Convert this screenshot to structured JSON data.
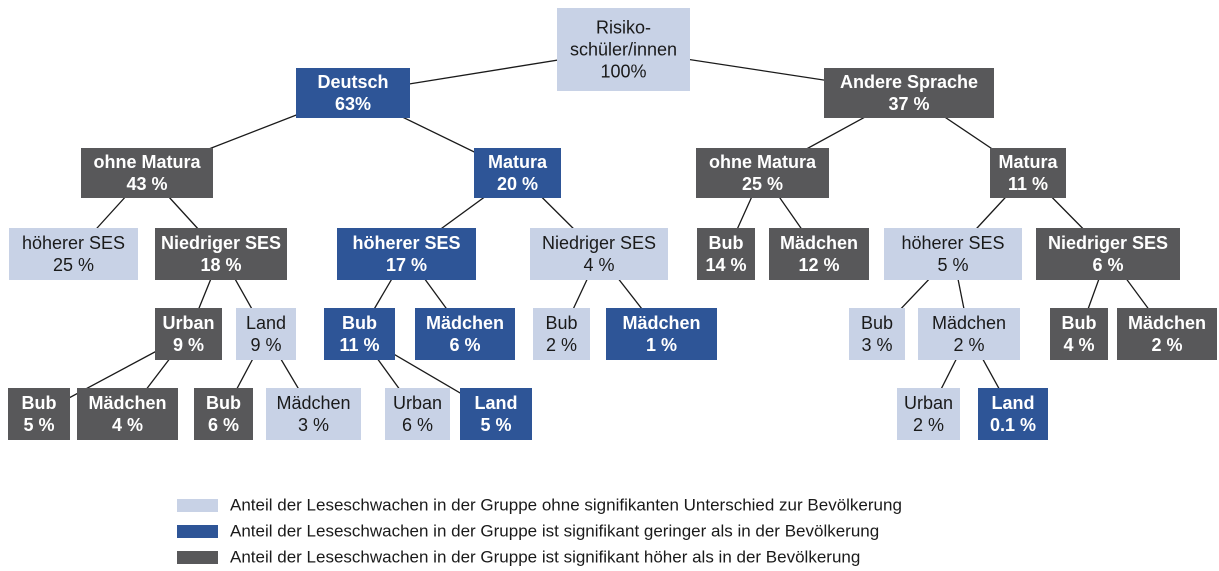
{
  "nodes": [
    {
      "lines": [
        "Risiko-",
        "schüler/innen",
        "100%"
      ],
      "color": "#c8d2e6"
    },
    {
      "lines": [
        "Deutsch",
        "63%"
      ],
      "color": "#2e5597"
    },
    {
      "lines": [
        "Andere Sprache",
        "37 %"
      ],
      "color": "#58585a"
    },
    {
      "lines": [
        "ohne Matura",
        "43 %"
      ],
      "color": "#58585a"
    },
    {
      "lines": [
        "Matura",
        "20 %"
      ],
      "color": "#2e5597"
    },
    {
      "lines": [
        "ohne Matura",
        "25 %"
      ],
      "color": "#58585a"
    },
    {
      "lines": [
        "Matura",
        "11 %"
      ],
      "color": "#58585a"
    },
    {
      "lines": [
        "höherer SES",
        "25 %"
      ],
      "color": "#c8d2e6"
    },
    {
      "lines": [
        "Niedriger SES",
        "18 %"
      ],
      "color": "#58585a"
    },
    {
      "lines": [
        "höherer SES",
        "17 %"
      ],
      "color": "#2e5597"
    },
    {
      "lines": [
        "Niedriger SES",
        "4 %"
      ],
      "color": "#c8d2e6"
    },
    {
      "lines": [
        "Bub",
        "14 %"
      ],
      "color": "#58585a"
    },
    {
      "lines": [
        "Mädchen",
        "12 %"
      ],
      "color": "#58585a"
    },
    {
      "lines": [
        "höherer SES",
        "5 %"
      ],
      "color": "#c8d2e6"
    },
    {
      "lines": [
        "Niedriger SES",
        "6 %"
      ],
      "color": "#58585a"
    },
    {
      "lines": [
        "Urban",
        "9 %"
      ],
      "color": "#58585a"
    },
    {
      "lines": [
        "Land",
        "9 %"
      ],
      "color": "#c8d2e6"
    },
    {
      "lines": [
        "Bub",
        "11 %"
      ],
      "color": "#2e5597"
    },
    {
      "lines": [
        "Mädchen",
        "6 %"
      ],
      "color": "#2e5597"
    },
    {
      "lines": [
        "Bub",
        "2 %"
      ],
      "color": "#c8d2e6"
    },
    {
      "lines": [
        "Mädchen",
        "1 %"
      ],
      "color": "#2e5597"
    },
    {
      "lines": [
        "Bub",
        "3 %"
      ],
      "color": "#c8d2e6"
    },
    {
      "lines": [
        "Mädchen",
        "2 %"
      ],
      "color": "#c8d2e6"
    },
    {
      "lines": [
        "Bub",
        "4 %"
      ],
      "color": "#58585a"
    },
    {
      "lines": [
        "Mädchen",
        "2 %"
      ],
      "color": "#58585a"
    },
    {
      "lines": [
        "Bub",
        "5 %"
      ],
      "color": "#58585a"
    },
    {
      "lines": [
        "Mädchen",
        "4 %"
      ],
      "color": "#58585a"
    },
    {
      "lines": [
        "Bub",
        "6 %"
      ],
      "color": "#58585a"
    },
    {
      "lines": [
        "Mädchen",
        "3 %"
      ],
      "color": "#c8d2e6"
    },
    {
      "lines": [
        "Urban",
        "6 %"
      ],
      "color": "#c8d2e6"
    },
    {
      "lines": [
        "Land",
        "5 %"
      ],
      "color": "#2e5597"
    },
    {
      "lines": [
        "Urban",
        "2 %"
      ],
      "color": "#c8d2e6"
    },
    {
      "lines": [
        "Land",
        "0.1 %"
      ],
      "color": "#2e5597"
    }
  ],
  "legend": [
    {
      "label": "Anteil der Leseschwachen in der Gruppe ohne signifikanten Unterschied zur Bevölkerung",
      "color": "#c8d2e6"
    },
    {
      "label": "Anteil der Leseschwachen in der Gruppe ist signifikant geringer als in der Bevölkerung",
      "color": "#2e5597"
    },
    {
      "label": "Anteil der Leseschwachen in der Gruppe ist signifikant höher als in der Bevölkerung",
      "color": "#58585a"
    }
  ]
}
